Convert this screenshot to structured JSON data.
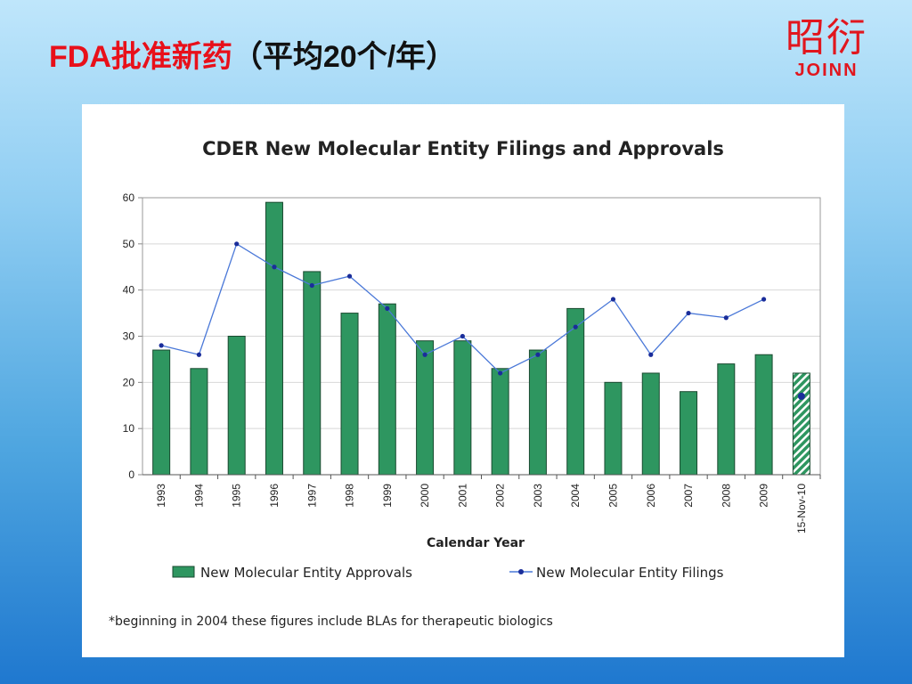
{
  "slide": {
    "title_red": "FDA批准新药",
    "title_black": "（平均20个/年）",
    "logo_cn": "昭衍",
    "logo_en": "JOINN"
  },
  "colors": {
    "bar": "#2e9660",
    "bar_border": "#1a4a30",
    "line": "#4a78d8",
    "marker": "#1a2d9a",
    "title_red": "#e8101a"
  },
  "chart_data": {
    "type": "bar",
    "title": "CDER New Molecular Entity Filings and Approvals",
    "xlabel": "Calendar Year",
    "ylabel": "",
    "ylim": [
      0,
      60
    ],
    "yticks": [
      "0",
      "10",
      "20",
      "30",
      "40",
      "50",
      "60"
    ],
    "grid": true,
    "legend_position": "bottom",
    "categories": [
      "1993",
      "1994",
      "1995",
      "1996",
      "1997",
      "1998",
      "1999",
      "2000",
      "2001",
      "2002",
      "2003",
      "2004",
      "2005",
      "2006",
      "2007",
      "2008",
      "2009",
      "15-Nov-10"
    ],
    "series": [
      {
        "name": "New Molecular Entity Approvals",
        "type": "bar",
        "values": [
          27,
          23,
          30,
          59,
          44,
          35,
          37,
          29,
          29,
          23,
          27,
          36,
          20,
          22,
          18,
          24,
          26,
          22
        ],
        "partial_last": true
      },
      {
        "name": "New Molecular Entity Filings",
        "type": "line",
        "values": [
          28,
          26,
          50,
          45,
          41,
          43,
          36,
          26,
          30,
          22,
          26,
          32,
          38,
          26,
          35,
          34,
          38,
          17
        ],
        "partial_last": true
      }
    ],
    "footnote": "*beginning in 2004 these figures include BLAs for therapeutic biologics"
  }
}
